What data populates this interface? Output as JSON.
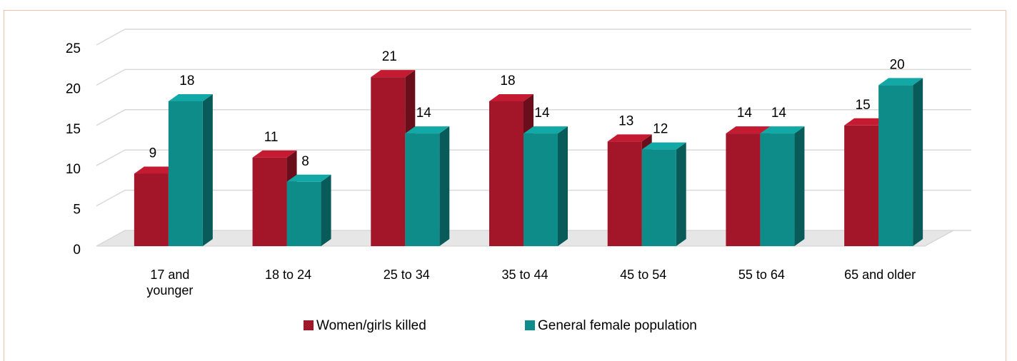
{
  "chart_data": {
    "type": "bar3d",
    "categories": [
      "17 and younger",
      "18 to 24",
      "25 to 34",
      "35 to 44",
      "45 to 54",
      "55 to 64",
      "65 and older"
    ],
    "series": [
      {
        "name": "Women/girls killed",
        "color": "#a3162a",
        "values": [
          9,
          11,
          21,
          18,
          13,
          14,
          15
        ]
      },
      {
        "name": "General female population",
        "color": "#0e8c8a",
        "values": [
          18,
          8,
          14,
          14,
          12,
          14,
          20
        ]
      }
    ],
    "ylim": [
      0,
      25
    ],
    "yticks": [
      0,
      5,
      10,
      15,
      20,
      25
    ],
    "grid": true,
    "legend": "bottom"
  }
}
